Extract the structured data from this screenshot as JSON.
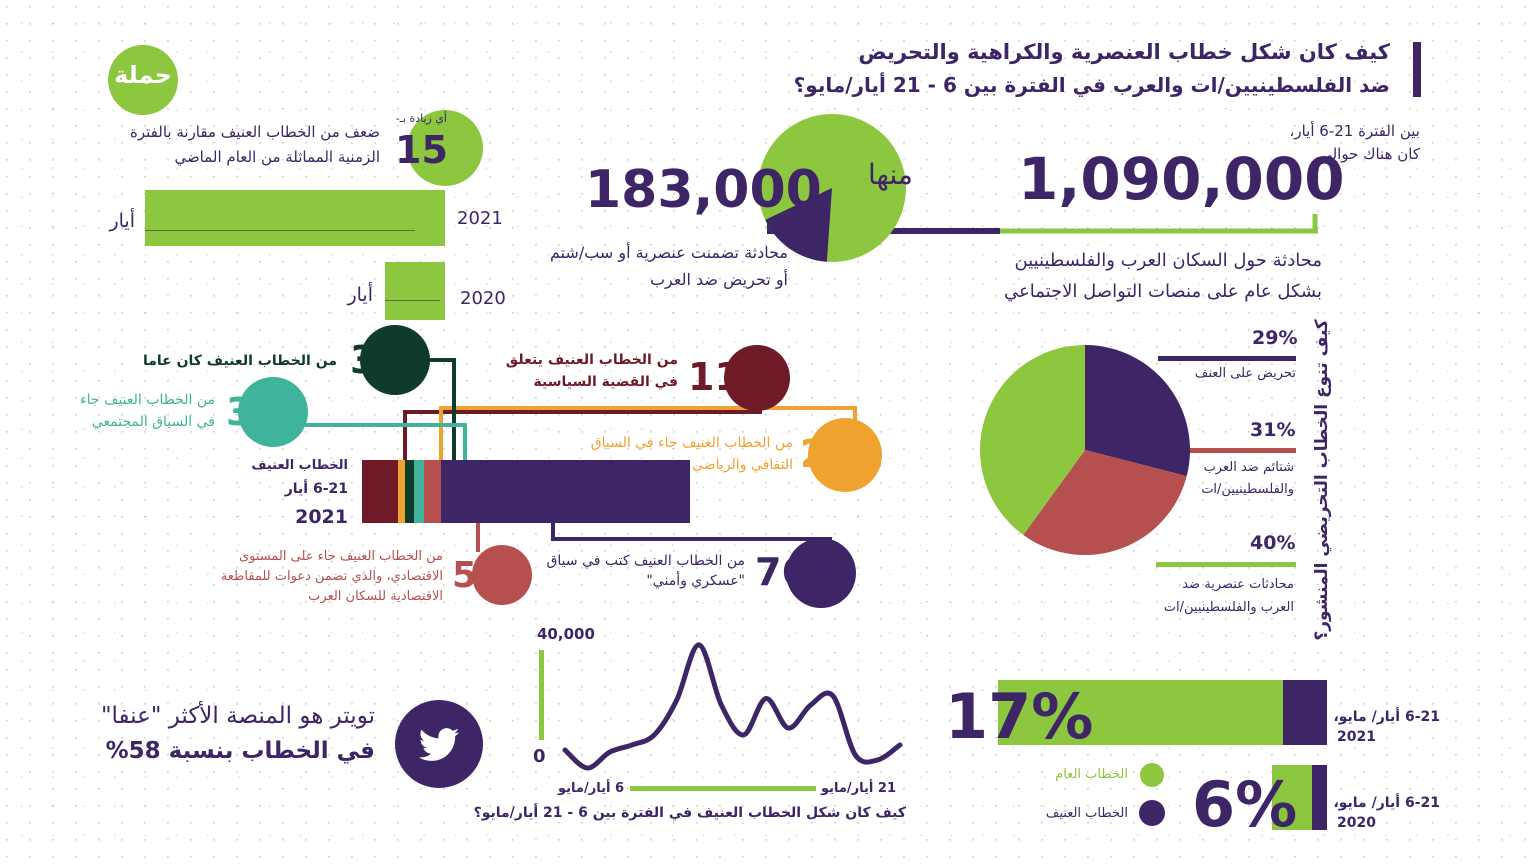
{
  "colors": {
    "purple": "#3d2566",
    "green": "#8dc63f",
    "dark_red": "#6e1a27",
    "orange": "#f0a230",
    "dark_green": "#0f3b2a",
    "teal": "#3fb49a",
    "brick": "#b5504f"
  },
  "logo": {
    "text": "حملة"
  },
  "header": {
    "title_line1": "كيف كان شكل خطاب العنصرية والكراهية والتحريض",
    "title_line2": "ضد الفلسطينيين/ات والعرب في الفترة بين 6 - 21 أيار/مايو؟"
  },
  "total": {
    "intro_line1": "بين الفترة 21-6 أيار،",
    "intro_line2": "كان هناك حوالي",
    "value": "1,090,000",
    "desc_line1": "محادثة حول السكان العرب والفلسطينيين",
    "desc_line2": "بشكل عام على منصات التواصل الاجتماعي"
  },
  "violent": {
    "value": "183,000",
    "of_them": "منها",
    "desc_line1": "محادثة تضمنت عنصرية أو سب/شتم",
    "desc_line2": "أو تحريض ضد العرب"
  },
  "increase": {
    "prefix": "أي زيادة بـ-",
    "value": "15",
    "desc_line1": "ضعف من الخطاب العنيف مقارنة بالفترة",
    "desc_line2": "الزمنية المماثلة من العام الماضي",
    "year_2021": "2021",
    "year_2020": "2020",
    "month_2021": "أيار",
    "month_2020": "أيار"
  },
  "breakdown": {
    "bar_label_line1": "الخطاب العنيف",
    "bar_label_line2": "6-21 أيار",
    "bar_label_year": "2021",
    "items": [
      {
        "pct": "11%",
        "line1": "من الخطاب العنيف يتعلق",
        "line2": "في القضية السياسية"
      },
      {
        "pct": "2%",
        "line1": "من الخطاب الغنيف جاء في السياق",
        "line2": "الثقافي والرياضي"
      },
      {
        "pct": "3%",
        "line1": "من الخطاب العنيف كان عاما",
        "line2": ""
      },
      {
        "pct": "3%",
        "line1": "من الخطاب العنيف جاء",
        "line2": "في السياق المجتمعي"
      },
      {
        "pct": "5%",
        "line1": "من الخطاب العنيف جاء على المستوى",
        "line2": "الاقتصادي، والذي تضمن دعوات للمقاطعة",
        "line3": "الاقتصادية للسكان العرب"
      },
      {
        "pct": "76%",
        "line1": "من الخطاب العنيف كتب في سياق",
        "line2": "\"عسكري وأمني\""
      }
    ]
  },
  "types": {
    "title": "كيف تنوع الخطاب التحريضي المنشور؟",
    "items": [
      {
        "pct": "29%",
        "line1": "تحريض على العنف",
        "line2": ""
      },
      {
        "pct": "31%",
        "line1": "شتائم ضد العرب",
        "line2": "والفلسطينيين/ات"
      },
      {
        "pct": "40%",
        "line1": "محادثات عنصرية ضد",
        "line2": "العرب والفلسطينيين/ات"
      }
    ]
  },
  "twitter": {
    "line1": "تويتر هو المنصة الأكثر \"عنفا\"",
    "line2": "في الخطاب بنسبة 58%"
  },
  "timeline": {
    "y_max_label": "40,000",
    "y_min_label": "0",
    "x_start_label": "6 أيار/مايو",
    "x_end_label": "21 أيار/مايو",
    "title": "كيف كان شكل الخطاب العنيف في الفترة بين 6 - 21 أيار/مايو؟"
  },
  "share": {
    "pct_2021": "17%",
    "label_2021_line1": "6-21 أيار/ مايو،",
    "label_2021_line2": "2021",
    "pct_2020": "6%",
    "label_2020_line1": "6-21 أيار/ مايو،",
    "label_2020_line2": "2020",
    "legend_general": "الخطاب العام",
    "legend_violent": "الخطاب العنيف"
  },
  "chart_data": [
    {
      "type": "pie",
      "title": "كيف تنوع الخطاب التحريضي المنشور؟",
      "labels": [
        "تحريض على العنف",
        "شتائم ضد العرب والفلسطينيين/ات",
        "محادثات عنصرية ضد العرب والفلسطينيين/ات"
      ],
      "values": [
        29,
        31,
        40
      ]
    },
    {
      "type": "pie",
      "title": "violent share of total conversations",
      "labels": [
        "total",
        "violent"
      ],
      "values": [
        1090000,
        183000
      ]
    },
    {
      "type": "bar",
      "stacked": true,
      "title": "الخطاب العنيف 6-21 أيار 2021",
      "categories": [
        "political",
        "cultural-sports",
        "general",
        "social",
        "economic",
        "military-security"
      ],
      "values": [
        11,
        2,
        3,
        3,
        5,
        76
      ]
    },
    {
      "type": "line",
      "title": "كيف كان شكل الخطاب العنيف في الفترة بين 6 - 21 أيار/مايو؟",
      "x": [
        6,
        7,
        8,
        9,
        10,
        11,
        12,
        13,
        14,
        15,
        16,
        17,
        18,
        19,
        20,
        21
      ],
      "values": [
        7700,
        3100,
        4600,
        22800,
        20000,
        12900,
        22000,
        10800,
        20000,
        38500,
        21500,
        10800,
        7700,
        5500,
        600,
        6150
      ],
      "ylim": [
        0,
        40000
      ],
      "x_direction": "right-to-left"
    },
    {
      "type": "bar",
      "title": "violent share of discourse",
      "categories": [
        "2021",
        "2020"
      ],
      "values": [
        17,
        6
      ]
    }
  ]
}
